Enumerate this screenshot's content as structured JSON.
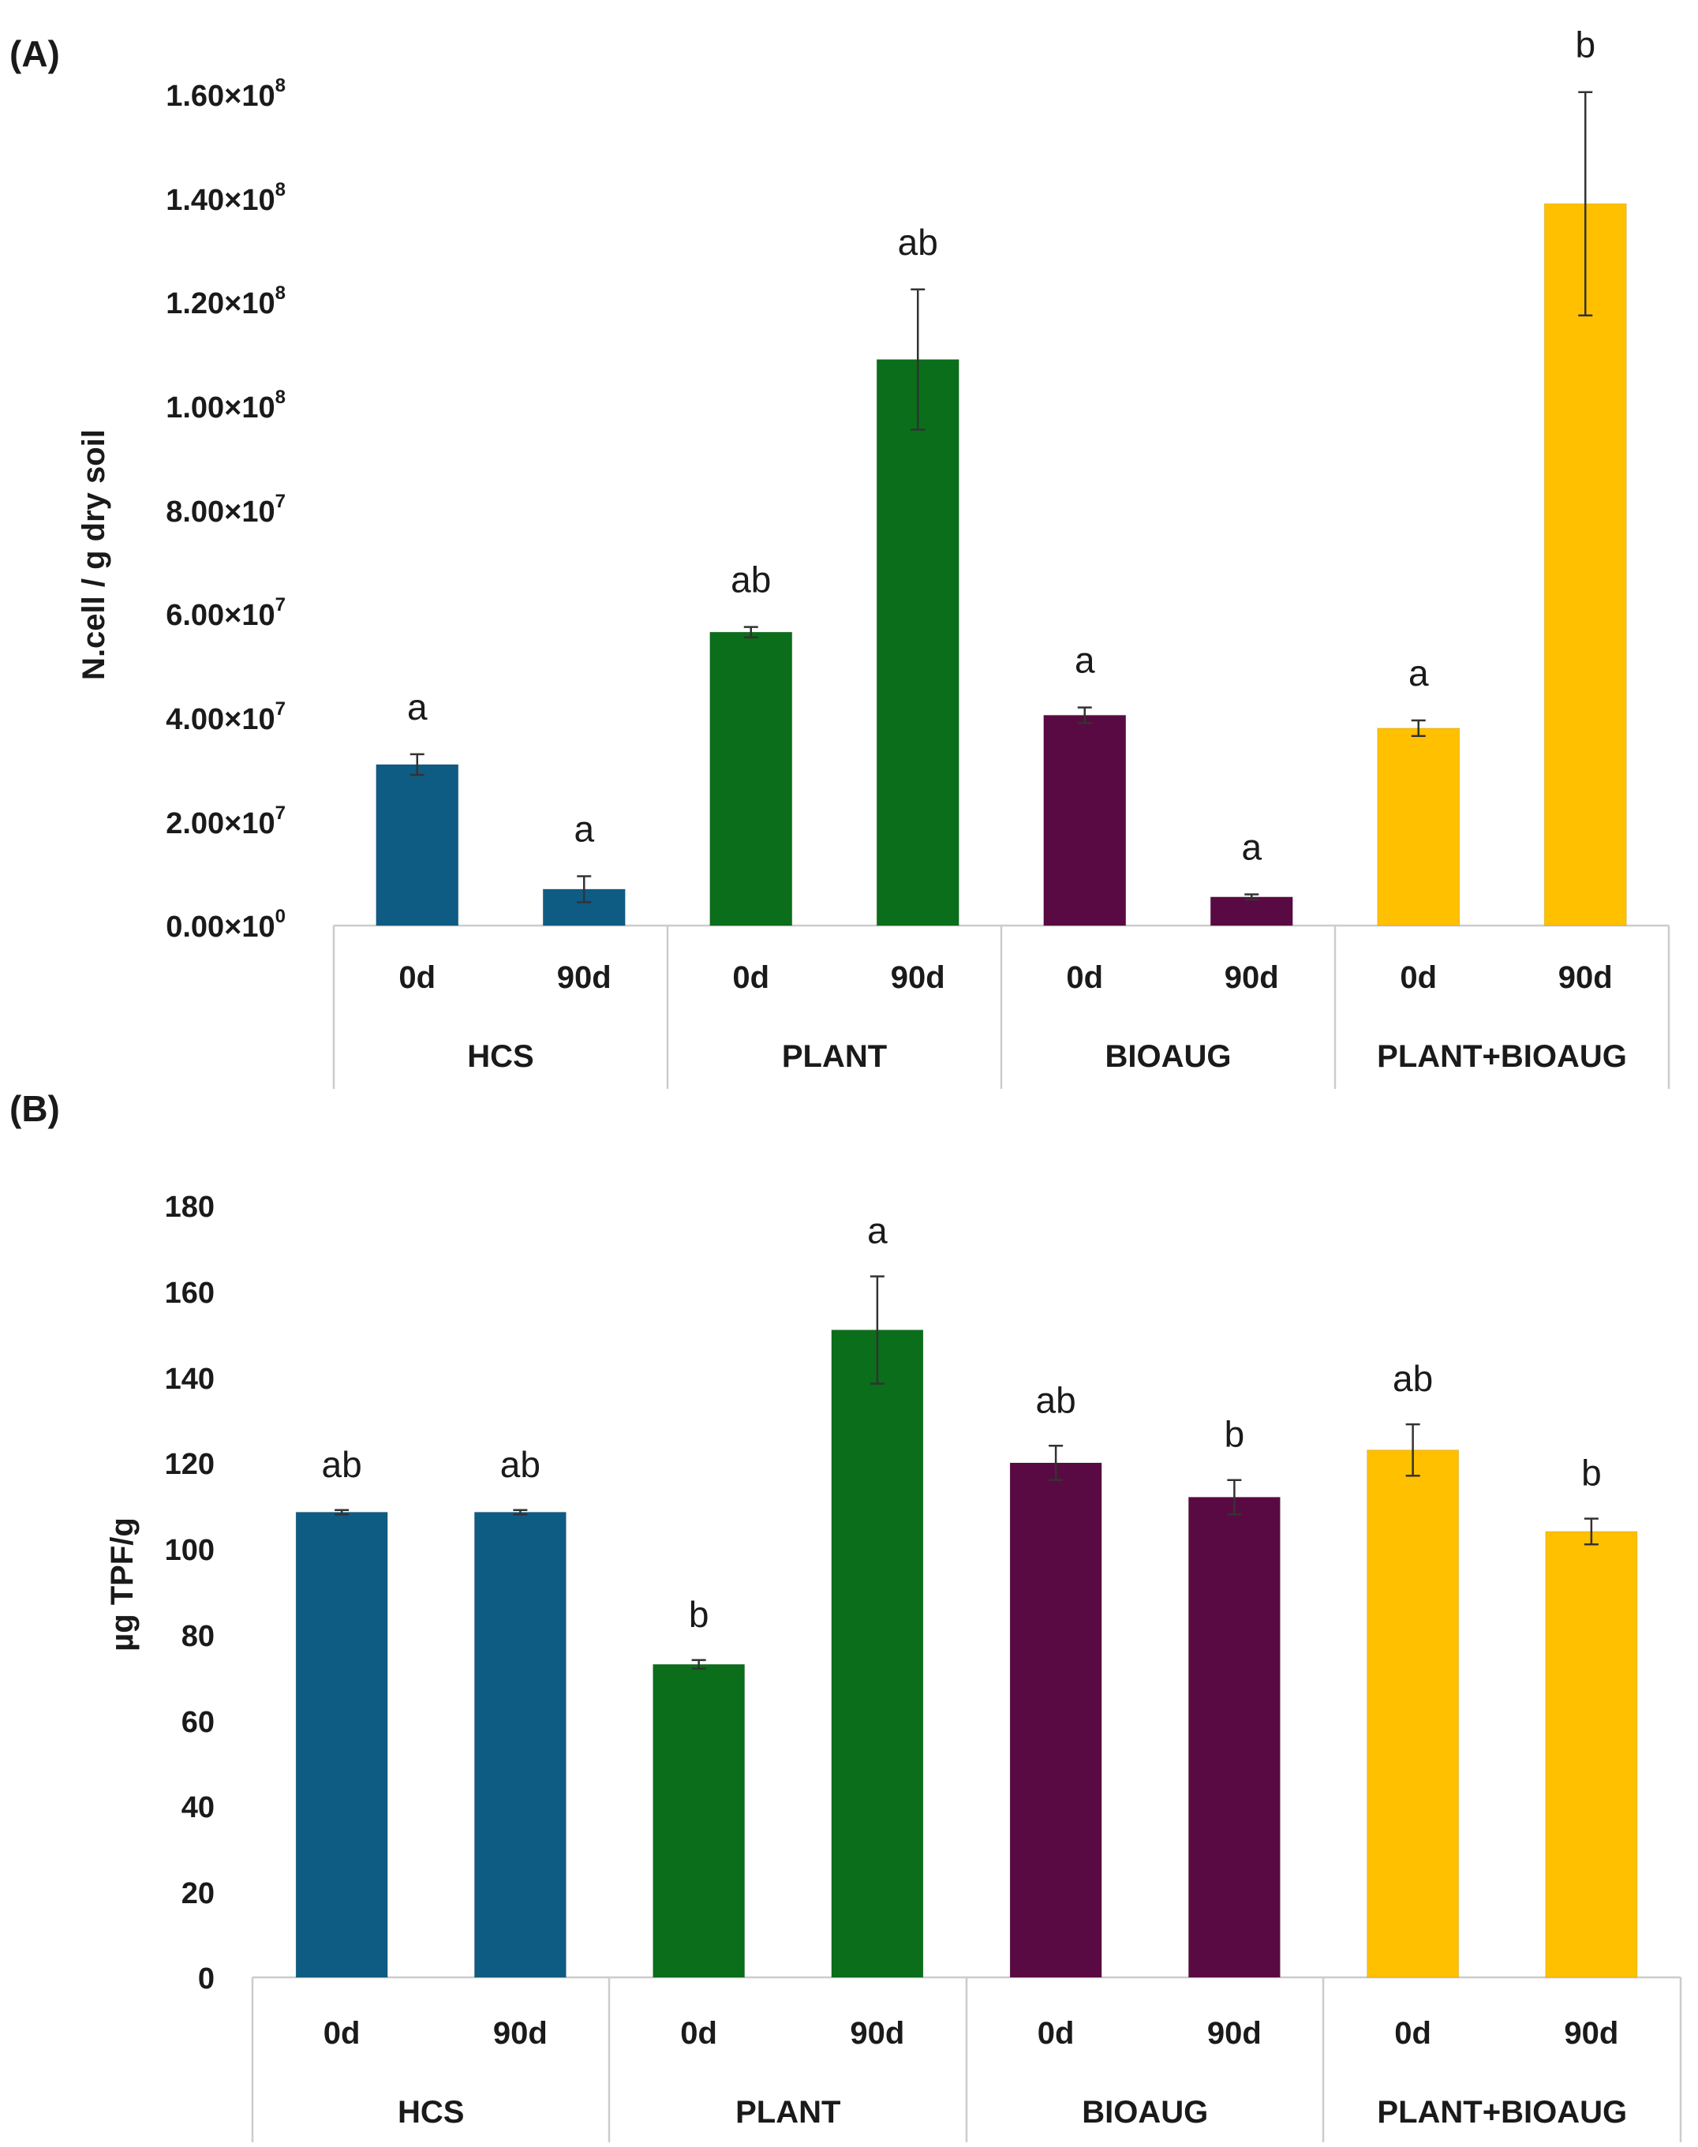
{
  "panels": [
    {
      "id": "A",
      "panel_label": "(A)",
      "ylabel": "N.cell / g dry soil",
      "y_tick_labels": [
        {
          "mant": "0.00",
          "exp": "0"
        },
        {
          "mant": "2.00",
          "exp": "7"
        },
        {
          "mant": "4.00",
          "exp": "7"
        },
        {
          "mant": "6.00",
          "exp": "7"
        },
        {
          "mant": "8.00",
          "exp": "7"
        },
        {
          "mant": "1.00",
          "exp": "8"
        },
        {
          "mant": "1.20",
          "exp": "8"
        },
        {
          "mant": "1.40",
          "exp": "8"
        },
        {
          "mant": "1.60",
          "exp": "8"
        }
      ]
    },
    {
      "id": "B",
      "panel_label": "(B)",
      "ylabel": "µg TPF/g",
      "y_tick_labels": [
        "0",
        "20",
        "40",
        "60",
        "80",
        "100",
        "120",
        "140",
        "160",
        "180"
      ]
    }
  ],
  "chart_data": [
    {
      "type": "bar",
      "title": "",
      "xlabel": "",
      "ylabel": "N.cell / g dry soil",
      "ylim": [
        0,
        160000000
      ],
      "yticks": [
        0,
        20000000,
        40000000,
        60000000,
        80000000,
        100000000,
        120000000,
        140000000,
        160000000
      ],
      "grid": false,
      "groups": [
        "HCS",
        "PLANT",
        "BIOAUG",
        "PLANT+BIOAUG"
      ],
      "categories": [
        "0d",
        "90d",
        "0d",
        "90d",
        "0d",
        "90d",
        "0d",
        "90d"
      ],
      "group_colors": [
        "#0e5c84",
        "#0a6e1a",
        "#5a0a42",
        "#ffc000"
      ],
      "values": [
        31000000,
        7000000,
        56500000,
        109000000,
        40500000,
        5500000,
        38000000,
        139000000
      ],
      "errors": [
        2000000,
        2500000,
        1000000,
        13500000,
        1500000,
        500000,
        1500000,
        21500000
      ],
      "significance": [
        "a",
        "a",
        "ab",
        "ab",
        "a",
        "a",
        "a",
        "b"
      ]
    },
    {
      "type": "bar",
      "title": "",
      "xlabel": "",
      "ylabel": "µg TPF/g",
      "ylim": [
        0,
        180
      ],
      "yticks": [
        0,
        20,
        40,
        60,
        80,
        100,
        120,
        140,
        160,
        180
      ],
      "grid": false,
      "groups": [
        "HCS",
        "PLANT",
        "BIOAUG",
        "PLANT+BIOAUG"
      ],
      "categories": [
        "0d",
        "90d",
        "0d",
        "90d",
        "0d",
        "90d",
        "0d",
        "90d"
      ],
      "group_colors": [
        "#0e5c84",
        "#0a6e1a",
        "#5a0a42",
        "#ffc000"
      ],
      "values": [
        108.5,
        108.5,
        73,
        151,
        120,
        112,
        123,
        104
      ],
      "errors": [
        0.5,
        0.5,
        1,
        12.5,
        4,
        4,
        6,
        3
      ],
      "significance": [
        "ab",
        "ab",
        "b",
        "a",
        "ab",
        "b",
        "ab",
        "b"
      ]
    }
  ]
}
